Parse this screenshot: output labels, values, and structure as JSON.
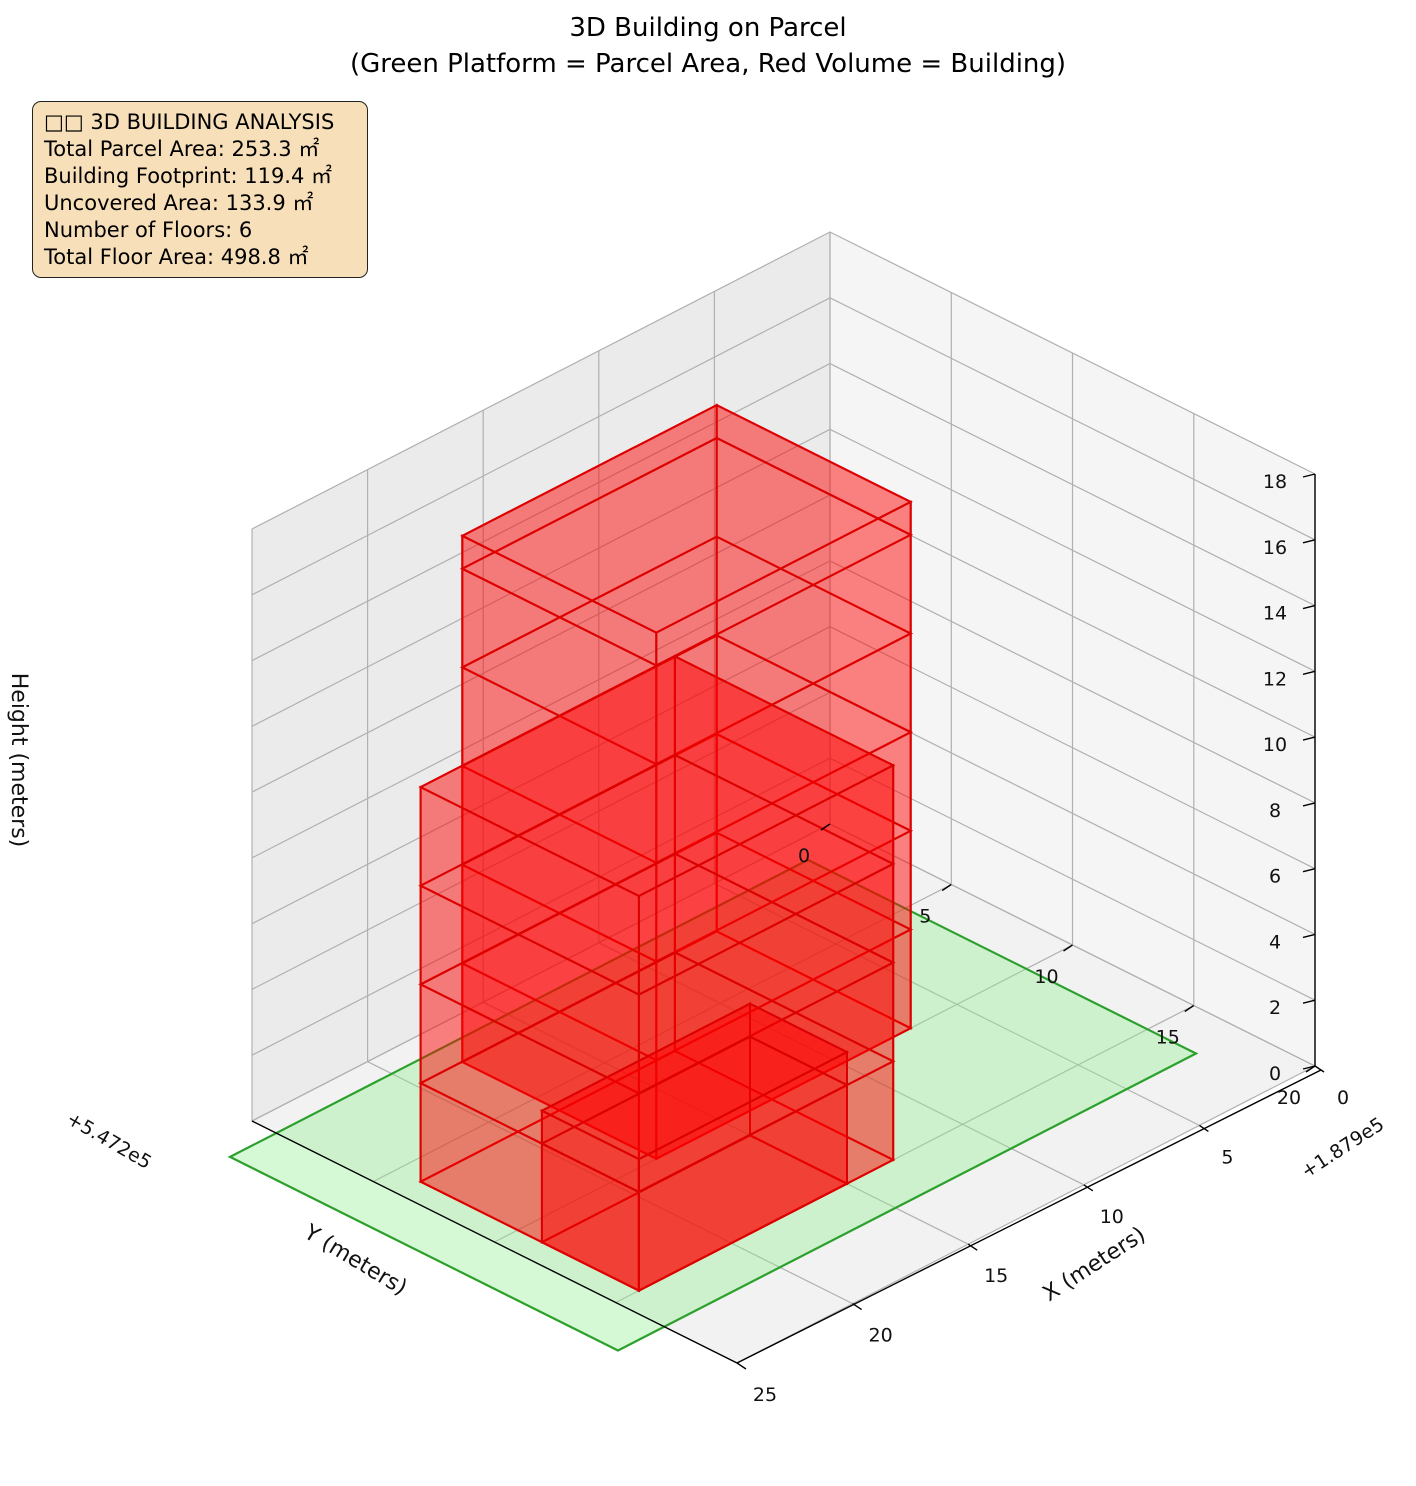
{
  "chart_data": {
    "type": "3d-box",
    "title": "3D Building on Parcel",
    "subtitle": "(Green Platform = Parcel Area, Red Volume = Building)",
    "xlabel": "X (meters)",
    "ylabel": "Y (meters)",
    "zlabel": "Height (meters)",
    "x_offset_label": "+1.879e5",
    "y_offset_label": "+5.472e5",
    "x_ticks": [
      "0",
      "5",
      "10",
      "15",
      "20",
      "25"
    ],
    "y_ticks": [
      "0",
      "5",
      "10",
      "15",
      "20"
    ],
    "z_ticks": [
      "0",
      "2",
      "4",
      "6",
      "8",
      "10",
      "12",
      "14",
      "16",
      "18"
    ],
    "xlim": [
      0,
      25
    ],
    "ylim": [
      0,
      20
    ],
    "zlim": [
      0,
      18
    ],
    "grid": true,
    "colors": {
      "parcel": "#2ca02c",
      "parcel_fill": "#90ee90",
      "building": "#ff0000"
    },
    "parcel": {
      "x_range": [
        2,
        27
      ],
      "y_range": [
        1,
        17
      ],
      "z": 0
    },
    "building_blocks": [
      {
        "x": [
          7,
          18
        ],
        "y": [
          2,
          10
        ],
        "z": [
          0,
          16
        ]
      },
      {
        "x": [
          13,
          24
        ],
        "y": [
          6,
          15
        ],
        "z": [
          0,
          12
        ]
      },
      {
        "x": [
          15,
          24
        ],
        "y": [
          11,
          15
        ],
        "z": [
          0,
          4
        ]
      }
    ]
  },
  "info_box": {
    "lines": [
      "□□ 3D BUILDING ANALYSIS",
      "Total Parcel Area: 253.3 ㎡",
      "Building Footprint: 119.4 ㎡",
      "Uncovered Area: 133.9 ㎡",
      "Number of Floors: 6",
      "Total Floor Area: 498.8 ㎡"
    ]
  }
}
